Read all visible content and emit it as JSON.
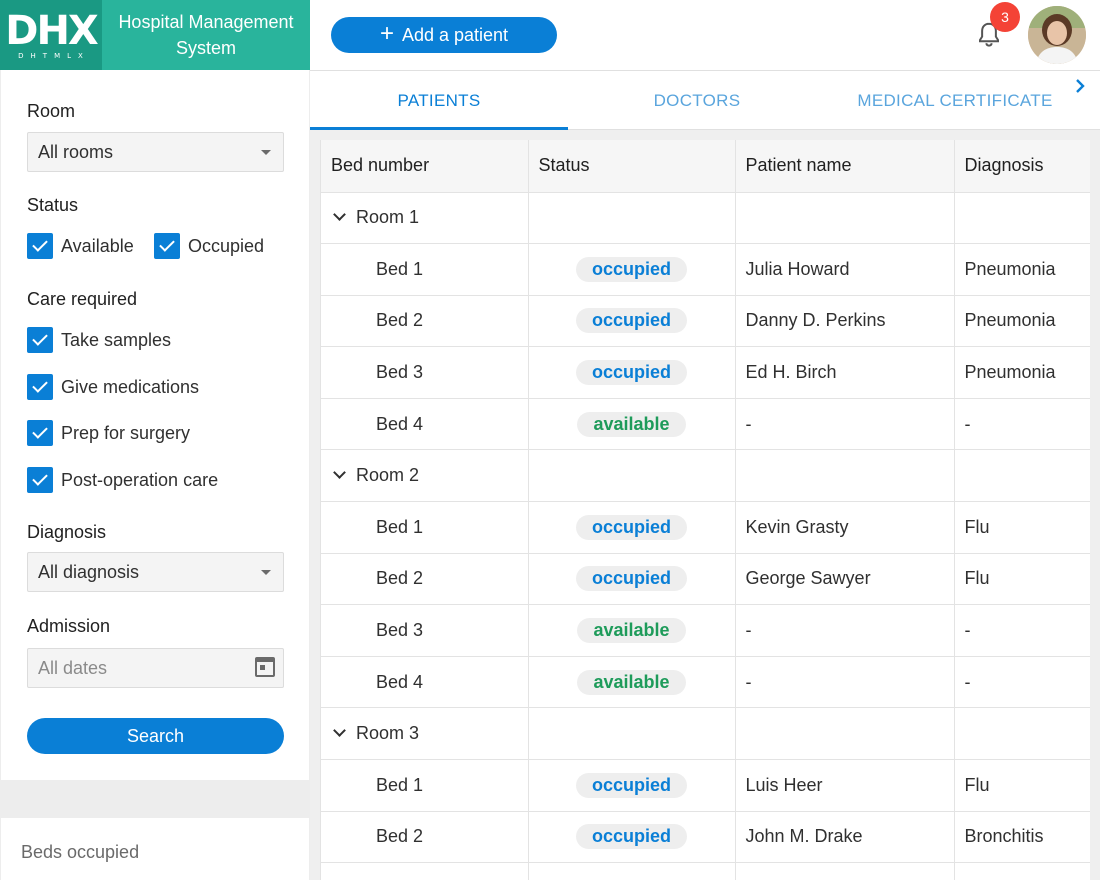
{
  "brand": {
    "logo_text": "DHX",
    "logo_subtext": "DHTMLX",
    "app_title_line1": "Hospital Management",
    "app_title_line2": "System"
  },
  "header": {
    "add_patient_label": "Add a patient",
    "notifications_count": "3"
  },
  "tabs": [
    {
      "label": "PATIENTS",
      "active": true
    },
    {
      "label": "DOCTORS",
      "active": false
    },
    {
      "label": "MEDICAL CERTIFICATE",
      "active": false
    }
  ],
  "filters": {
    "room": {
      "label": "Room",
      "value": "All rooms"
    },
    "status": {
      "label": "Status",
      "options": [
        {
          "label": "Available",
          "checked": true
        },
        {
          "label": "Occupied",
          "checked": true
        }
      ]
    },
    "care": {
      "label": "Care required",
      "options": [
        {
          "label": "Take samples",
          "checked": true
        },
        {
          "label": "Give medications",
          "checked": true
        },
        {
          "label": "Prep for surgery",
          "checked": true
        },
        {
          "label": "Post-operation care",
          "checked": true
        }
      ]
    },
    "diagnosis": {
      "label": "Diagnosis",
      "value": "All diagnosis"
    },
    "admission": {
      "label": "Admission",
      "placeholder": "All dates"
    },
    "search_label": "Search"
  },
  "stats": {
    "label": "Beds occupied"
  },
  "grid": {
    "columns": [
      "Bed number",
      "Status",
      "Patient name",
      "Diagnosis"
    ],
    "rows": [
      {
        "type": "group",
        "label": "Room 1"
      },
      {
        "type": "bed",
        "bed": "Bed 1",
        "status": "occupied",
        "patient": "Julia Howard",
        "diagnosis": "Pneumonia"
      },
      {
        "type": "bed",
        "bed": "Bed 2",
        "status": "occupied",
        "patient": "Danny D. Perkins",
        "diagnosis": "Pneumonia"
      },
      {
        "type": "bed",
        "bed": "Bed 3",
        "status": "occupied",
        "patient": "Ed H. Birch",
        "diagnosis": "Pneumonia"
      },
      {
        "type": "bed",
        "bed": "Bed 4",
        "status": "available",
        "patient": "-",
        "diagnosis": "-"
      },
      {
        "type": "group",
        "label": "Room 2"
      },
      {
        "type": "bed",
        "bed": "Bed 1",
        "status": "occupied",
        "patient": "Kevin Grasty",
        "diagnosis": "Flu"
      },
      {
        "type": "bed",
        "bed": "Bed 2",
        "status": "occupied",
        "patient": "George Sawyer",
        "diagnosis": "Flu"
      },
      {
        "type": "bed",
        "bed": "Bed 3",
        "status": "available",
        "patient": "-",
        "diagnosis": "-"
      },
      {
        "type": "bed",
        "bed": "Bed 4",
        "status": "available",
        "patient": "-",
        "diagnosis": "-"
      },
      {
        "type": "group",
        "label": "Room 3"
      },
      {
        "type": "bed",
        "bed": "Bed 1",
        "status": "occupied",
        "patient": "Luis Heer",
        "diagnosis": "Flu"
      },
      {
        "type": "bed",
        "bed": "Bed 2",
        "status": "occupied",
        "patient": "John M. Drake",
        "diagnosis": "Bronchitis"
      },
      {
        "type": "bed",
        "bed": "",
        "status": "",
        "patient": "",
        "diagnosis": ""
      }
    ]
  },
  "colors": {
    "brand_teal": "#29b49c",
    "brand_teal_dark": "#1a9983",
    "primary_blue": "#0a7fd6",
    "available_green": "#1e9b5a",
    "badge_red": "#f44336"
  },
  "icons": {
    "plus": "plus-icon",
    "bell": "bell-icon",
    "chevron_right": "chevron-right-icon",
    "chevron_down": "chevron-down-icon",
    "calendar": "calendar-icon",
    "check": "checkmark-icon",
    "caret": "caret-down-icon"
  }
}
